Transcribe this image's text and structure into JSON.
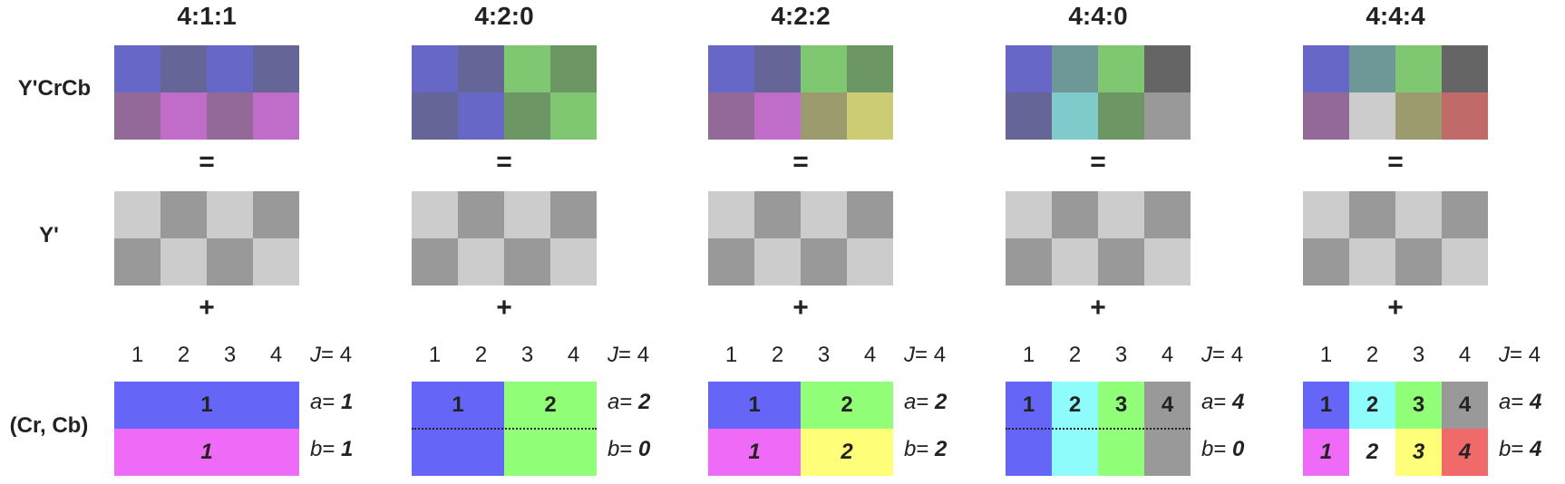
{
  "row_labels": {
    "ycrcb": "Y'CrCb",
    "y": "Y'",
    "crcb": "(Cr, Cb)"
  },
  "operators": {
    "equals": "=",
    "plus": "+"
  },
  "luma_colors": {
    "light": "#cccccc",
    "dark": "#999999"
  },
  "column_numbers": [
    "1",
    "2",
    "3",
    "4"
  ],
  "schemes": [
    {
      "title": "4:1:1",
      "ycrcb_colors": [
        "#6767c8",
        "#656598",
        "#6767c8",
        "#656598",
        "#936a97",
        "#c06cc9",
        "#936a97",
        "#c06cc9"
      ],
      "params": {
        "j_label": "J",
        "j_value": "4",
        "a_label": "a",
        "a_value": "1",
        "b_label": "b",
        "b_value": "1"
      },
      "chroma_top": [
        {
          "label": "1",
          "span": 4,
          "color": "#6565f7"
        }
      ],
      "chroma_bottom": [
        {
          "label": "1",
          "span": 4,
          "color": "#ef6af7"
        }
      ],
      "dotted": false
    },
    {
      "title": "4:2:0",
      "ycrcb_colors": [
        "#6767c8",
        "#656598",
        "#7fc871",
        "#6d9665",
        "#656598",
        "#6767c8",
        "#6d9665",
        "#7fc871"
      ],
      "params": {
        "j_label": "J",
        "j_value": "4",
        "a_label": "a",
        "a_value": "2",
        "b_label": "b",
        "b_value": "0"
      },
      "chroma_top": [
        {
          "label": "1",
          "span": 2,
          "color": "#6565f7"
        },
        {
          "label": "2",
          "span": 2,
          "color": "#92ff78"
        }
      ],
      "chroma_bottom": [
        {
          "label": "",
          "span": 2,
          "color": "#6565f7"
        },
        {
          "label": "",
          "span": 2,
          "color": "#92ff78"
        }
      ],
      "dotted": true
    },
    {
      "title": "4:2:2",
      "ycrcb_colors": [
        "#6767c8",
        "#656598",
        "#7fc871",
        "#6d9665",
        "#936a97",
        "#c06cc9",
        "#9b9b6d",
        "#cccc74"
      ],
      "params": {
        "j_label": "J",
        "j_value": "4",
        "a_label": "a",
        "a_value": "2",
        "b_label": "b",
        "b_value": "2"
      },
      "chroma_top": [
        {
          "label": "1",
          "span": 2,
          "color": "#6565f7"
        },
        {
          "label": "2",
          "span": 2,
          "color": "#92ff78"
        }
      ],
      "chroma_bottom": [
        {
          "label": "1",
          "span": 2,
          "color": "#ef6af7"
        },
        {
          "label": "2",
          "span": 2,
          "color": "#ffff7a"
        }
      ],
      "dotted": false
    },
    {
      "title": "4:4:0",
      "ycrcb_colors": [
        "#6767c8",
        "#6e9898",
        "#7fc871",
        "#656565",
        "#656598",
        "#7fcaca",
        "#6d9665",
        "#999999"
      ],
      "params": {
        "j_label": "J",
        "j_value": "4",
        "a_label": "a",
        "a_value": "4",
        "b_label": "b",
        "b_value": "0"
      },
      "chroma_top": [
        {
          "label": "1",
          "span": 1,
          "color": "#6565f7"
        },
        {
          "label": "2",
          "span": 1,
          "color": "#8ffcfc"
        },
        {
          "label": "3",
          "span": 1,
          "color": "#92ff78"
        },
        {
          "label": "4",
          "span": 1,
          "color": "#999999"
        }
      ],
      "chroma_bottom": [
        {
          "label": "",
          "span": 1,
          "color": "#6565f7"
        },
        {
          "label": "",
          "span": 1,
          "color": "#8ffcfc"
        },
        {
          "label": "",
          "span": 1,
          "color": "#92ff78"
        },
        {
          "label": "",
          "span": 1,
          "color": "#999999"
        }
      ],
      "dotted": true
    },
    {
      "title": "4:4:4",
      "ycrcb_colors": [
        "#6767c8",
        "#6e9898",
        "#7fc871",
        "#656565",
        "#936a97",
        "#cccccc",
        "#9b9b6d",
        "#c06a6a"
      ],
      "params": {
        "j_label": "J",
        "j_value": "4",
        "a_label": "a",
        "a_value": "4",
        "b_label": "b",
        "b_value": "4"
      },
      "chroma_top": [
        {
          "label": "1",
          "span": 1,
          "color": "#6565f7"
        },
        {
          "label": "2",
          "span": 1,
          "color": "#8ffcfc"
        },
        {
          "label": "3",
          "span": 1,
          "color": "#92ff78"
        },
        {
          "label": "4",
          "span": 1,
          "color": "#999999"
        }
      ],
      "chroma_bottom": [
        {
          "label": "1",
          "span": 1,
          "color": "#ef6af7"
        },
        {
          "label": "2",
          "span": 1,
          "color": "#ffffff"
        },
        {
          "label": "3",
          "span": 1,
          "color": "#ffff7a"
        },
        {
          "label": "4",
          "span": 1,
          "color": "#f06a6a"
        }
      ],
      "dotted": false
    }
  ]
}
